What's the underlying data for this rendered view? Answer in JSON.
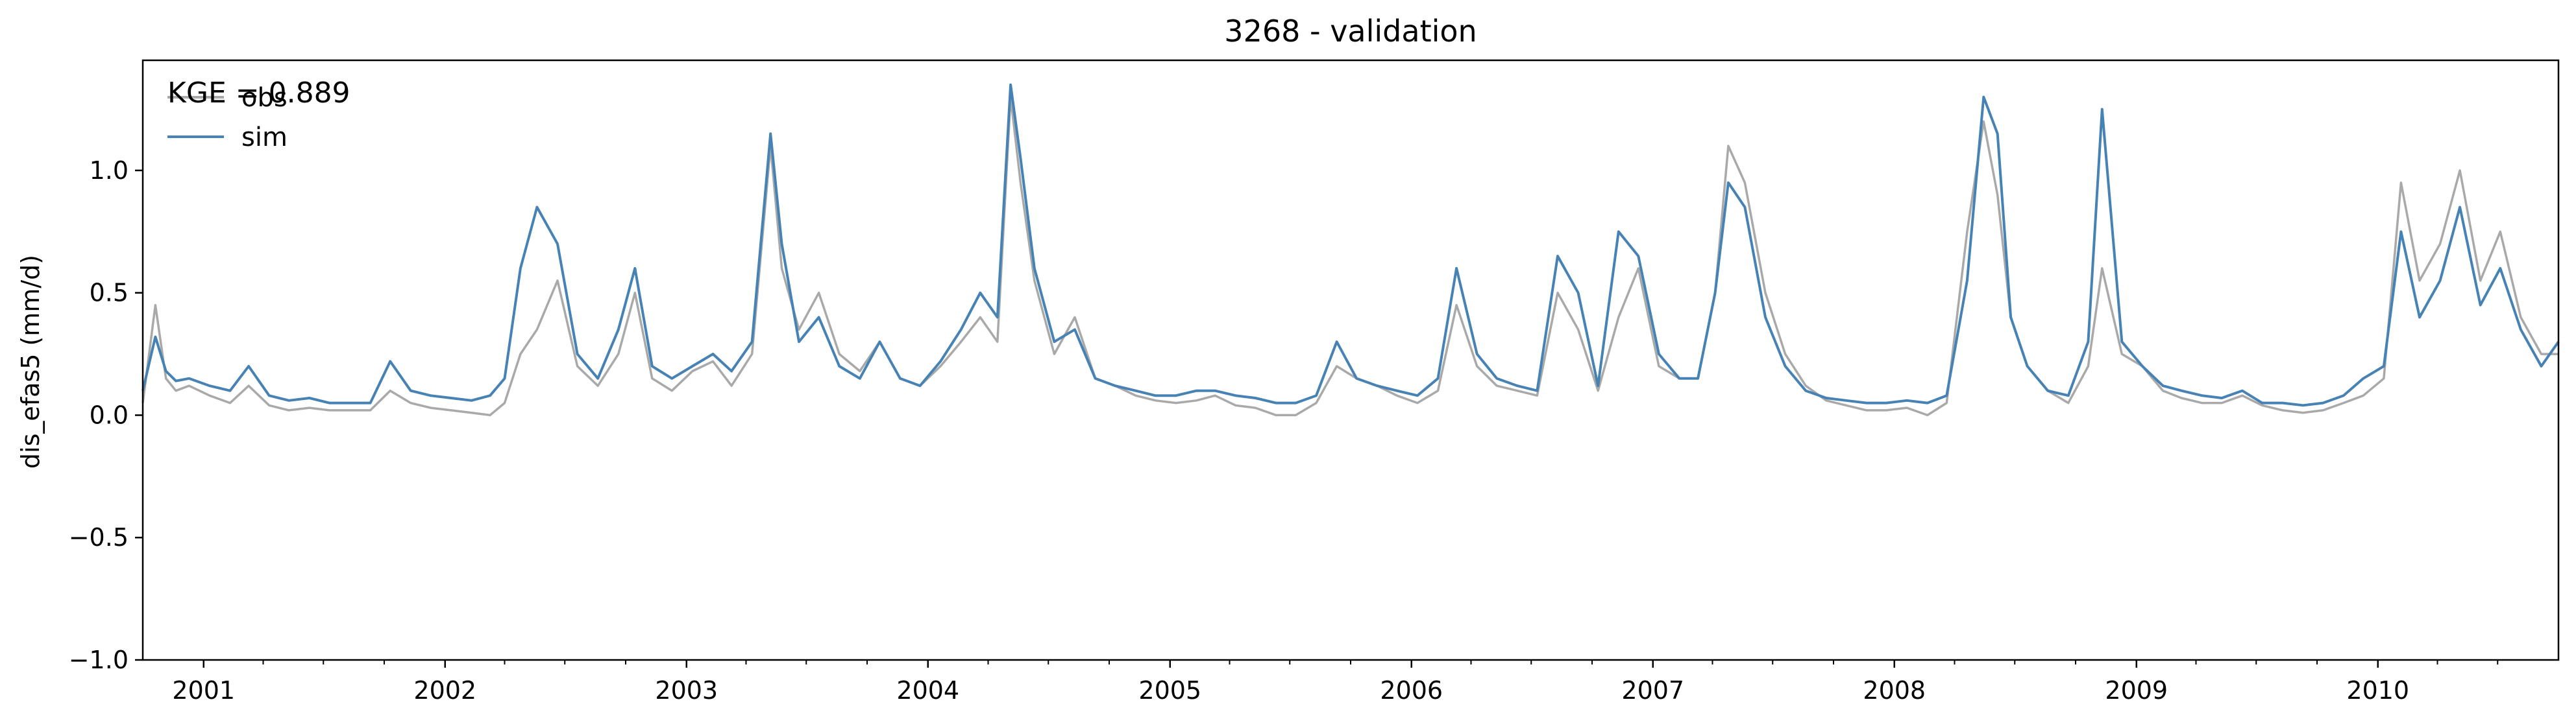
{
  "chart_data": {
    "type": "line",
    "title": "3268 - validation",
    "xlabel": "",
    "ylabel": "dis_efas5 (mm/d)",
    "xlim": [
      "2000-10-01",
      "2010-10-01"
    ],
    "ylim": [
      -1.0,
      1.45
    ],
    "y_ticks": [
      -1.0,
      -0.5,
      0.0,
      0.5,
      1.0
    ],
    "y_tick_labels": [
      "−1.0",
      "−0.5",
      "0.0",
      "0.5",
      "1.0"
    ],
    "x_ticks": [
      "2001-01-01",
      "2002-01-01",
      "2003-01-01",
      "2004-01-01",
      "2005-01-01",
      "2006-01-01",
      "2007-01-01",
      "2008-01-01",
      "2009-01-01",
      "2010-01-01"
    ],
    "x_tick_labels": [
      "2001",
      "2002",
      "2003",
      "2004",
      "2005",
      "2006",
      "2007",
      "2008",
      "2009",
      "2010"
    ],
    "grid": false,
    "legend_position": "top-left",
    "annotation": "KGE = 0.889",
    "series": [
      {
        "name": "obs",
        "color": "#a9a9a9",
        "dates": [
          "2000-10-01",
          "2000-10-20",
          "2000-11-05",
          "2000-11-20",
          "2000-12-10",
          "2001-01-10",
          "2001-02-10",
          "2001-03-10",
          "2001-04-10",
          "2001-05-10",
          "2001-06-10",
          "2001-07-10",
          "2001-08-10",
          "2001-09-10",
          "2001-10-10",
          "2001-11-10",
          "2001-12-10",
          "2002-01-10",
          "2002-02-10",
          "2002-03-10",
          "2002-04-01",
          "2002-04-25",
          "2002-05-20",
          "2002-06-20",
          "2002-07-20",
          "2002-08-20",
          "2002-09-20",
          "2002-10-15",
          "2002-11-10",
          "2002-12-10",
          "2003-01-10",
          "2003-02-10",
          "2003-03-10",
          "2003-04-10",
          "2003-05-08",
          "2003-05-25",
          "2003-06-20",
          "2003-07-20",
          "2003-08-20",
          "2003-09-20",
          "2003-10-20",
          "2003-11-20",
          "2003-12-20",
          "2004-01-20",
          "2004-02-20",
          "2004-03-20",
          "2004-04-15",
          "2004-05-05",
          "2004-05-20",
          "2004-06-10",
          "2004-07-10",
          "2004-08-10",
          "2004-09-10",
          "2004-10-10",
          "2004-11-10",
          "2004-12-10",
          "2005-01-10",
          "2005-02-10",
          "2005-03-10",
          "2005-04-10",
          "2005-05-10",
          "2005-06-10",
          "2005-07-10",
          "2005-08-10",
          "2005-09-10",
          "2005-10-10",
          "2005-11-10",
          "2005-12-10",
          "2006-01-10",
          "2006-02-10",
          "2006-03-10",
          "2006-04-10",
          "2006-05-10",
          "2006-06-10",
          "2006-07-10",
          "2006-08-10",
          "2006-09-10",
          "2006-10-10",
          "2006-11-10",
          "2006-12-10",
          "2007-01-10",
          "2007-02-10",
          "2007-03-10",
          "2007-04-05",
          "2007-04-25",
          "2007-05-20",
          "2007-06-20",
          "2007-07-20",
          "2007-08-20",
          "2007-09-20",
          "2007-10-20",
          "2007-11-20",
          "2007-12-20",
          "2008-01-20",
          "2008-02-20",
          "2008-03-20",
          "2008-04-20",
          "2008-05-15",
          "2008-06-05",
          "2008-06-25",
          "2008-07-20",
          "2008-08-20",
          "2008-09-20",
          "2008-10-20",
          "2008-11-10",
          "2008-12-10",
          "2009-01-10",
          "2009-02-10",
          "2009-03-10",
          "2009-04-10",
          "2009-05-10",
          "2009-06-10",
          "2009-07-10",
          "2009-08-10",
          "2009-09-10",
          "2009-10-10",
          "2009-11-10",
          "2009-12-10",
          "2010-01-10",
          "2010-02-05",
          "2010-03-05",
          "2010-04-05",
          "2010-05-05",
          "2010-06-05",
          "2010-07-05",
          "2010-08-05",
          "2010-09-05",
          "2010-10-01"
        ],
        "values": [
          0.05,
          0.45,
          0.15,
          0.1,
          0.12,
          0.08,
          0.05,
          0.12,
          0.04,
          0.02,
          0.03,
          0.02,
          0.02,
          0.02,
          0.1,
          0.05,
          0.03,
          0.02,
          0.01,
          0.0,
          0.05,
          0.25,
          0.35,
          0.55,
          0.2,
          0.12,
          0.25,
          0.5,
          0.15,
          0.1,
          0.18,
          0.22,
          0.12,
          0.25,
          1.1,
          0.6,
          0.35,
          0.5,
          0.25,
          0.18,
          0.3,
          0.15,
          0.12,
          0.2,
          0.3,
          0.4,
          0.3,
          1.3,
          0.95,
          0.55,
          0.25,
          0.4,
          0.15,
          0.12,
          0.08,
          0.06,
          0.05,
          0.06,
          0.08,
          0.04,
          0.03,
          0.0,
          0.0,
          0.05,
          0.2,
          0.15,
          0.12,
          0.08,
          0.05,
          0.1,
          0.45,
          0.2,
          0.12,
          0.1,
          0.08,
          0.5,
          0.35,
          0.1,
          0.4,
          0.6,
          0.2,
          0.15,
          0.15,
          0.5,
          1.1,
          0.95,
          0.5,
          0.25,
          0.12,
          0.06,
          0.04,
          0.02,
          0.02,
          0.03,
          0.0,
          0.05,
          0.75,
          1.2,
          0.9,
          0.4,
          0.2,
          0.1,
          0.05,
          0.2,
          0.6,
          0.25,
          0.2,
          0.1,
          0.07,
          0.05,
          0.05,
          0.08,
          0.04,
          0.02,
          0.01,
          0.02,
          0.05,
          0.08,
          0.15,
          0.95,
          0.55,
          0.7,
          1.0,
          0.55,
          0.75,
          0.4,
          0.25,
          0.25
        ]
      },
      {
        "name": "sim",
        "color": "#4682b4",
        "dates": [
          "2000-10-01",
          "2000-10-20",
          "2000-11-05",
          "2000-11-20",
          "2000-12-10",
          "2001-01-10",
          "2001-02-10",
          "2001-03-10",
          "2001-04-10",
          "2001-05-10",
          "2001-06-10",
          "2001-07-10",
          "2001-08-10",
          "2001-09-10",
          "2001-10-10",
          "2001-11-10",
          "2001-12-10",
          "2002-01-10",
          "2002-02-10",
          "2002-03-10",
          "2002-04-01",
          "2002-04-25",
          "2002-05-20",
          "2002-06-20",
          "2002-07-20",
          "2002-08-20",
          "2002-09-20",
          "2002-10-15",
          "2002-11-10",
          "2002-12-10",
          "2003-01-10",
          "2003-02-10",
          "2003-03-10",
          "2003-04-10",
          "2003-05-08",
          "2003-05-25",
          "2003-06-20",
          "2003-07-20",
          "2003-08-20",
          "2003-09-20",
          "2003-10-20",
          "2003-11-20",
          "2003-12-20",
          "2004-01-20",
          "2004-02-20",
          "2004-03-20",
          "2004-04-15",
          "2004-05-05",
          "2004-05-20",
          "2004-06-10",
          "2004-07-10",
          "2004-08-10",
          "2004-09-10",
          "2004-10-10",
          "2004-11-10",
          "2004-12-10",
          "2005-01-10",
          "2005-02-10",
          "2005-03-10",
          "2005-04-10",
          "2005-05-10",
          "2005-06-10",
          "2005-07-10",
          "2005-08-10",
          "2005-09-10",
          "2005-10-10",
          "2005-11-10",
          "2005-12-10",
          "2006-01-10",
          "2006-02-10",
          "2006-03-10",
          "2006-04-10",
          "2006-05-10",
          "2006-06-10",
          "2006-07-10",
          "2006-08-10",
          "2006-09-10",
          "2006-10-10",
          "2006-11-10",
          "2006-12-10",
          "2007-01-10",
          "2007-02-10",
          "2007-03-10",
          "2007-04-05",
          "2007-04-25",
          "2007-05-20",
          "2007-06-20",
          "2007-07-20",
          "2007-08-20",
          "2007-09-20",
          "2007-10-20",
          "2007-11-20",
          "2007-12-20",
          "2008-01-20",
          "2008-02-20",
          "2008-03-20",
          "2008-04-20",
          "2008-05-15",
          "2008-06-05",
          "2008-06-25",
          "2008-07-20",
          "2008-08-20",
          "2008-09-20",
          "2008-10-20",
          "2008-11-10",
          "2008-12-10",
          "2009-01-10",
          "2009-02-10",
          "2009-03-10",
          "2009-04-10",
          "2009-05-10",
          "2009-06-10",
          "2009-07-10",
          "2009-08-10",
          "2009-09-10",
          "2009-10-10",
          "2009-11-10",
          "2009-12-10",
          "2010-01-10",
          "2010-02-05",
          "2010-03-05",
          "2010-04-05",
          "2010-05-05",
          "2010-06-05",
          "2010-07-05",
          "2010-08-05",
          "2010-09-05",
          "2010-10-01"
        ],
        "values": [
          0.1,
          0.32,
          0.18,
          0.14,
          0.15,
          0.12,
          0.1,
          0.2,
          0.08,
          0.06,
          0.07,
          0.05,
          0.05,
          0.05,
          0.22,
          0.1,
          0.08,
          0.07,
          0.06,
          0.08,
          0.15,
          0.6,
          0.85,
          0.7,
          0.25,
          0.15,
          0.35,
          0.6,
          0.2,
          0.15,
          0.2,
          0.25,
          0.18,
          0.3,
          1.15,
          0.7,
          0.3,
          0.4,
          0.2,
          0.15,
          0.3,
          0.15,
          0.12,
          0.22,
          0.35,
          0.5,
          0.4,
          1.35,
          1.05,
          0.6,
          0.3,
          0.35,
          0.15,
          0.12,
          0.1,
          0.08,
          0.08,
          0.1,
          0.1,
          0.08,
          0.07,
          0.05,
          0.05,
          0.08,
          0.3,
          0.15,
          0.12,
          0.1,
          0.08,
          0.15,
          0.6,
          0.25,
          0.15,
          0.12,
          0.1,
          0.65,
          0.5,
          0.12,
          0.75,
          0.65,
          0.25,
          0.15,
          0.15,
          0.5,
          0.95,
          0.85,
          0.4,
          0.2,
          0.1,
          0.07,
          0.06,
          0.05,
          0.05,
          0.06,
          0.05,
          0.08,
          0.55,
          1.3,
          1.15,
          0.4,
          0.2,
          0.1,
          0.08,
          0.3,
          1.25,
          0.3,
          0.2,
          0.12,
          0.1,
          0.08,
          0.07,
          0.1,
          0.05,
          0.05,
          0.04,
          0.05,
          0.08,
          0.15,
          0.2,
          0.75,
          0.4,
          0.55,
          0.85,
          0.45,
          0.6,
          0.35,
          0.2,
          0.3
        ]
      }
    ]
  }
}
